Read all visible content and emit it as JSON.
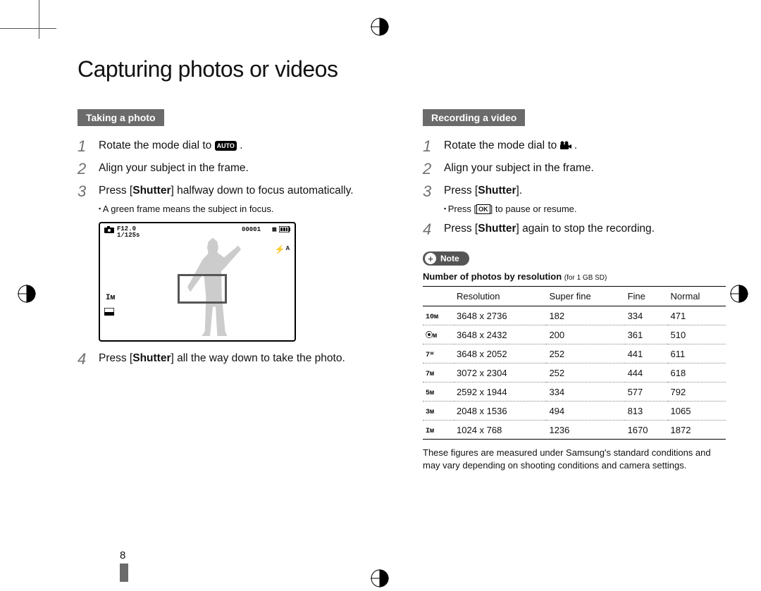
{
  "page_title": "Capturing photos or videos",
  "page_number": "8",
  "left": {
    "heading": "Taking a photo",
    "steps": [
      {
        "n": "1",
        "pre": "Rotate the mode dial to ",
        "mode": "AUTO",
        "post": "."
      },
      {
        "n": "2",
        "text": "Align your subject in the frame."
      },
      {
        "n": "3",
        "pre": "Press [",
        "bold": "Shutter",
        "post": "] halfway down to focus automatically.",
        "sub": "A green frame means the subject in focus."
      },
      {
        "n": "4",
        "pre": "Press [",
        "bold": "Shutter",
        "post": "] all the way down to take the photo."
      }
    ],
    "lcd": {
      "top_left1": "F12.0",
      "top_left2": "1/125s",
      "top_right": "00001",
      "right_icon": "⚡ᴬ",
      "left_mid": "Iᴍ"
    }
  },
  "right": {
    "heading": "Recording a video",
    "steps": [
      {
        "n": "1",
        "pre": "Rotate the mode dial to ",
        "video_icon": true,
        "post": "."
      },
      {
        "n": "2",
        "text": "Align your subject in the frame."
      },
      {
        "n": "3",
        "pre": "Press [",
        "bold": "Shutter",
        "post": "].",
        "sub_pre": "Press [",
        "sub_icon": "OK",
        "sub_post": "] to pause or resume."
      },
      {
        "n": "4",
        "pre": "Press [",
        "bold": "Shutter",
        "post": "] again to stop the recording."
      }
    ],
    "note_label": "Note",
    "table_caption_bold": "Number of photos by resolution",
    "table_caption_sub": "(for 1 GB SD)",
    "table": {
      "columns": [
        "Resolution",
        "Super fine",
        "Fine",
        "Normal"
      ],
      "rows": [
        {
          "icon": "10ᴍ",
          "res": "3648 x 2736",
          "sf": "182",
          "f": "334",
          "n": "471"
        },
        {
          "icon": "⦿ᴍ",
          "res": "3648 x 2432",
          "sf": "200",
          "f": "361",
          "n": "510"
        },
        {
          "icon": "7ʷ",
          "res": "3648 x 2052",
          "sf": "252",
          "f": "441",
          "n": "611"
        },
        {
          "icon": "7ᴍ",
          "res": "3072 x 2304",
          "sf": "252",
          "f": "444",
          "n": "618"
        },
        {
          "icon": "5ᴍ",
          "res": "2592 x 1944",
          "sf": "334",
          "f": "577",
          "n": "792"
        },
        {
          "icon": "3ᴍ",
          "res": "2048 x 1536",
          "sf": "494",
          "f": "813",
          "n": "1065"
        },
        {
          "icon": "Iᴍ",
          "res": "1024 x 768",
          "sf": "1236",
          "f": "1670",
          "n": "1872"
        }
      ]
    },
    "footnote": "These ﬁgures are measured under Samsung's standard conditions and may vary depending on shooting conditions and camera settings."
  }
}
